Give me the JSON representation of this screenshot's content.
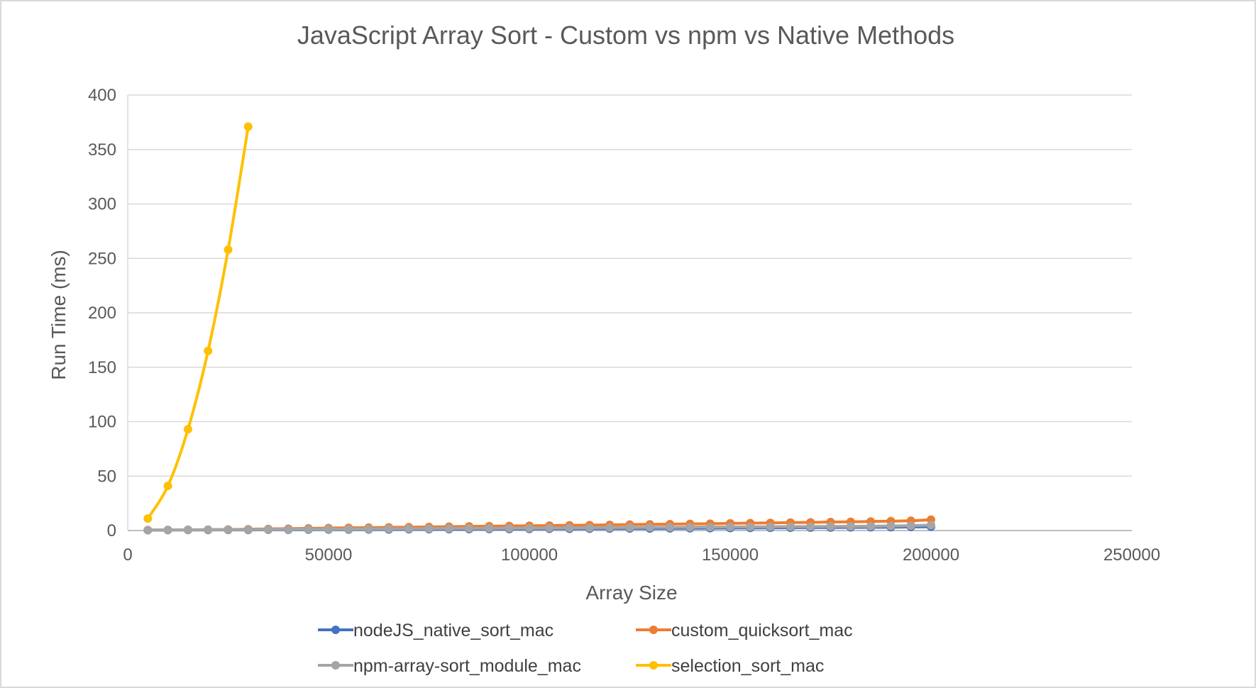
{
  "chart_data": {
    "type": "scatter",
    "title": "JavaScript Array Sort - Custom vs npm vs Native Methods",
    "xlabel": "Array Size",
    "ylabel": "Run Time (ms)",
    "xlim": [
      0,
      250000
    ],
    "ylim": [
      0,
      400
    ],
    "xticks": [
      "0",
      "50000",
      "100000",
      "150000",
      "200000",
      "250000"
    ],
    "yticks": [
      "0",
      "50",
      "100",
      "150",
      "200",
      "250",
      "300",
      "350",
      "400"
    ],
    "grid": true,
    "legend_position": "bottom",
    "x": [
      5000,
      10000,
      15000,
      20000,
      25000,
      30000,
      35000,
      40000,
      45000,
      50000,
      55000,
      60000,
      65000,
      70000,
      75000,
      80000,
      85000,
      90000,
      95000,
      100000,
      105000,
      110000,
      115000,
      120000,
      125000,
      130000,
      135000,
      140000,
      145000,
      150000,
      155000,
      160000,
      165000,
      170000,
      175000,
      180000,
      185000,
      190000,
      195000,
      200000
    ],
    "series": [
      {
        "name": "nodeJS_native_sort_mac",
        "color": "#4472C4",
        "values": [
          0.3,
          0.4,
          0.5,
          0.5,
          0.6,
          0.6,
          0.7,
          0.7,
          0.8,
          0.9,
          0.9,
          1.0,
          1.0,
          1.1,
          1.2,
          1.2,
          1.3,
          1.4,
          1.4,
          1.5,
          1.6,
          1.6,
          1.7,
          1.8,
          1.9,
          1.9,
          2.0,
          2.1,
          2.2,
          2.3,
          2.4,
          2.5,
          2.6,
          2.7,
          2.8,
          2.9,
          3.0,
          3.1,
          3.3,
          3.5
        ]
      },
      {
        "name": "custom_quicksort_mac",
        "color": "#ED7D31",
        "values": [
          0.5,
          0.6,
          0.7,
          0.8,
          1.0,
          1.2,
          1.5,
          1.7,
          2.0,
          2.3,
          2.5,
          2.7,
          2.9,
          3.1,
          3.3,
          3.6,
          3.8,
          4.0,
          4.2,
          4.4,
          4.6,
          4.8,
          5.0,
          5.2,
          5.5,
          5.7,
          5.9,
          6.1,
          6.3,
          6.6,
          6.8,
          7.0,
          7.3,
          7.5,
          7.8,
          8.0,
          8.3,
          8.6,
          9.0,
          10.0
        ]
      },
      {
        "name": "npm-array-sort_module_mac",
        "color": "#A5A5A5",
        "values": [
          0.4,
          0.5,
          0.6,
          0.7,
          0.8,
          0.9,
          1.0,
          1.1,
          1.2,
          1.3,
          1.4,
          1.5,
          1.6,
          1.7,
          1.8,
          1.9,
          2.0,
          2.1,
          2.2,
          2.3,
          2.4,
          2.5,
          2.6,
          2.7,
          2.8,
          2.9,
          3.0,
          3.1,
          3.2,
          3.3,
          3.4,
          3.5,
          3.6,
          3.7,
          3.8,
          3.9,
          4.0,
          4.2,
          4.5,
          5.0
        ]
      },
      {
        "name": "selection_sort_mac",
        "color": "#FFC000",
        "values": [
          11,
          41,
          93,
          165,
          258,
          371
        ]
      }
    ]
  }
}
